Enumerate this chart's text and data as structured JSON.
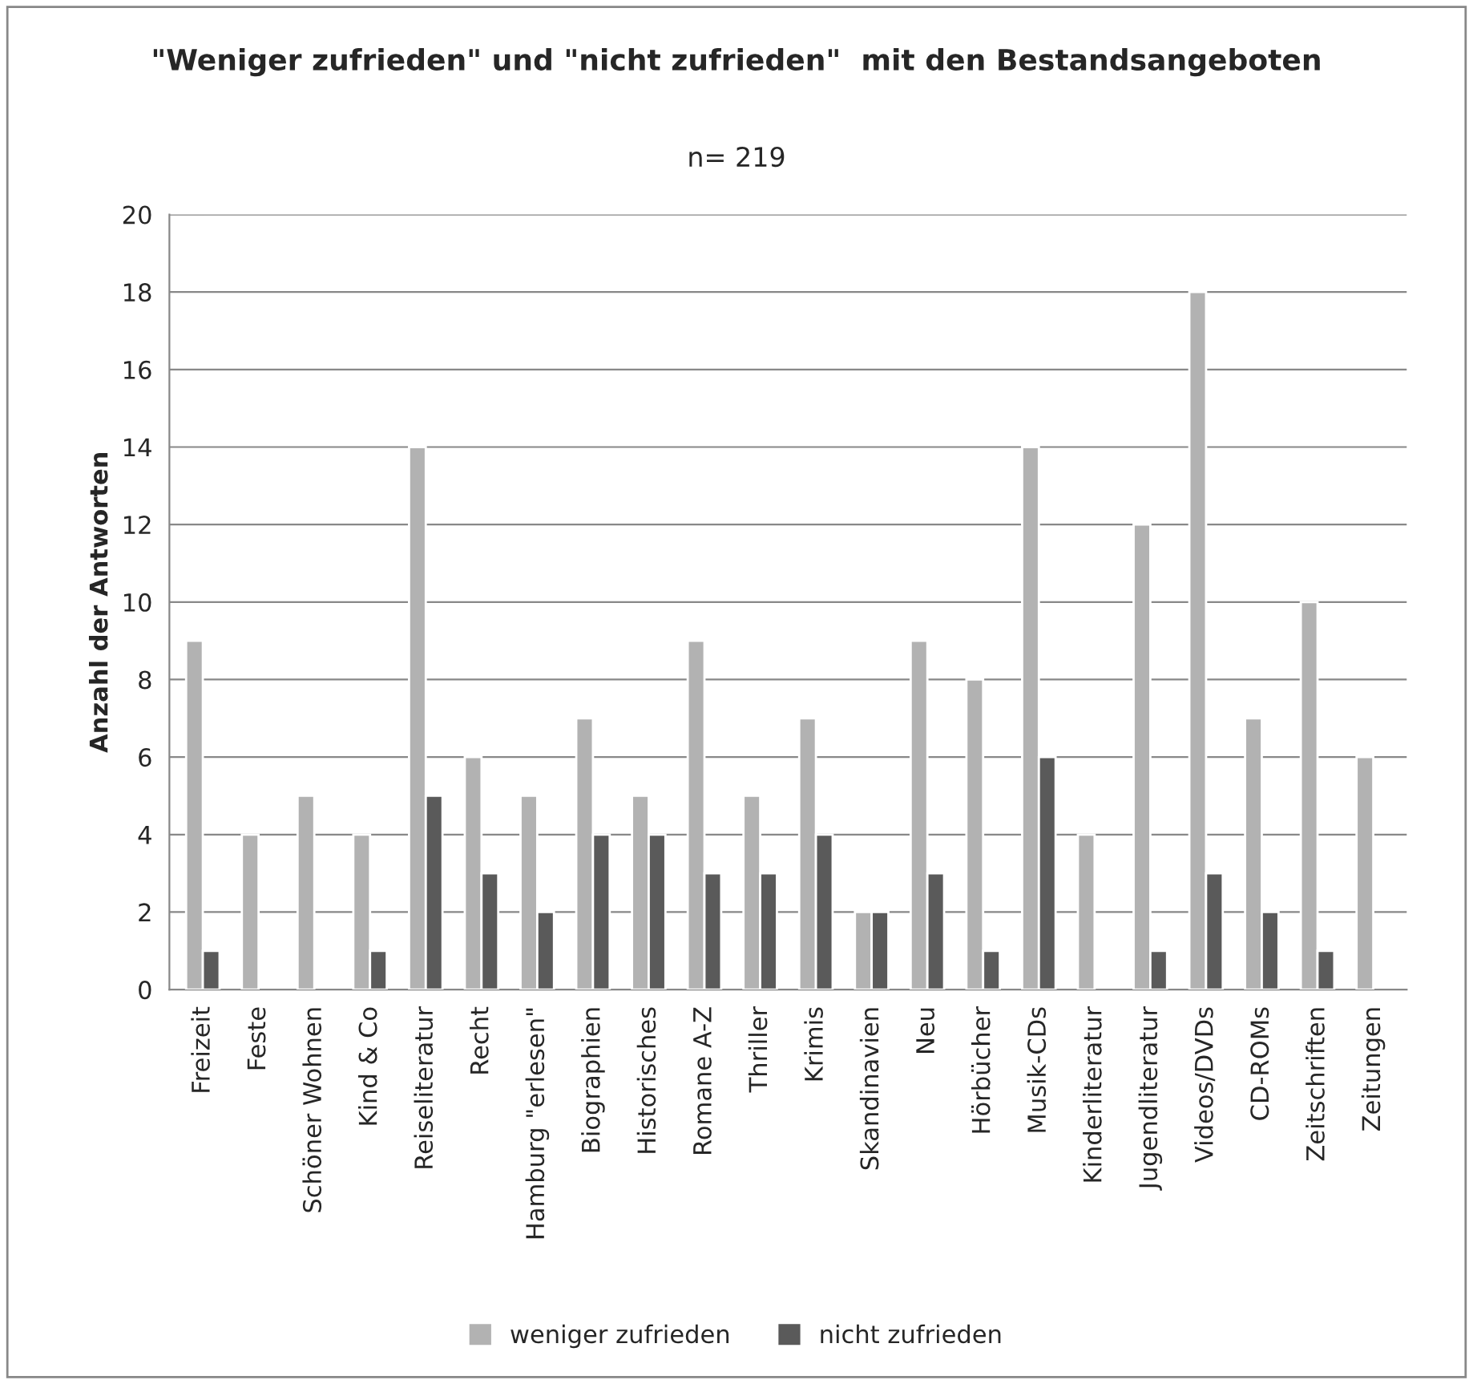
{
  "chart_data": {
    "type": "bar",
    "title": "\"Weniger zufrieden\" und \"nicht zufrieden\"  mit den Bestandsangeboten",
    "subtitle": "n= 219",
    "ylabel": "Anzahl der Antworten",
    "categories": [
      "Freizeit",
      "Feste",
      "Schöner Wohnen",
      "Kind & Co",
      "Reiseliteratur",
      "Recht",
      "Hamburg \"erlesen\"",
      "Biographien",
      "Historisches",
      "Romane A-Z",
      "Thriller",
      "Krimis",
      "Skandinavien",
      "Neu",
      "Hörbücher",
      "Musik-CDs",
      "Kinderliteratur",
      "Jugendliteratur",
      "Videos/DVDs",
      "CD-ROMs",
      "Zeitschriften",
      "Zeitungen"
    ],
    "series": [
      {
        "name": "weniger zufrieden",
        "color": "#b2b2b2",
        "values": [
          9,
          4,
          5,
          4,
          14,
          6,
          5,
          7,
          5,
          9,
          5,
          7,
          2,
          9,
          8,
          14,
          4,
          12,
          18,
          7,
          10,
          6
        ]
      },
      {
        "name": "nicht zufrieden",
        "color": "#5a5a5a",
        "values": [
          1,
          null,
          null,
          1,
          5,
          3,
          2,
          4,
          4,
          3,
          3,
          4,
          2,
          3,
          1,
          6,
          null,
          1,
          3,
          2,
          1,
          null
        ]
      }
    ],
    "ylim": [
      0,
      20
    ],
    "yticks": [
      0,
      2,
      4,
      6,
      8,
      10,
      12,
      14,
      16,
      18,
      20
    ],
    "grid": "y",
    "legend": "bottom"
  }
}
